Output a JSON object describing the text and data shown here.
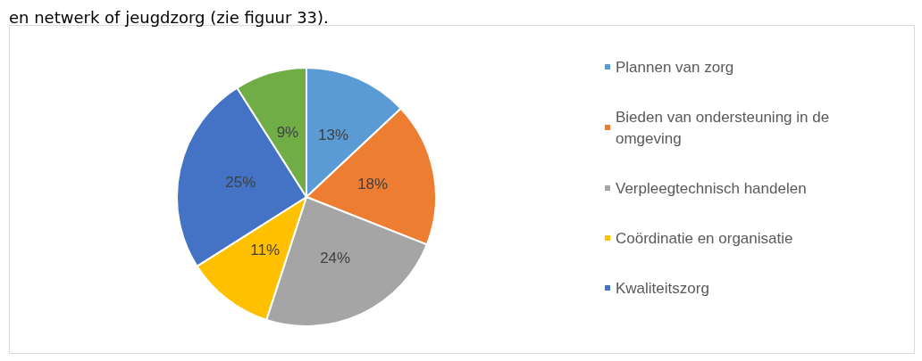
{
  "chart_data": {
    "type": "pie",
    "categories": [
      "Plannen van zorg",
      "Bieden van ondersteuning in de omgeving",
      "Verpleegtechnisch handelen",
      "Coördinatie en organisatie",
      "Kwaliteitszorg",
      null
    ],
    "values": [
      13,
      18,
      24,
      11,
      25,
      9
    ],
    "colors": [
      "#5b9bd5",
      "#ed7d31",
      "#a5a5a5",
      "#ffc000",
      "#4472c4",
      "#70ad47"
    ],
    "value_labels": [
      "13%",
      "18%",
      "24%",
      "11%",
      "25%",
      "9%"
    ],
    "legend": "right",
    "annotations": [
      "en netwerk of jeugdzorg (zie figuur 33)."
    ]
  }
}
